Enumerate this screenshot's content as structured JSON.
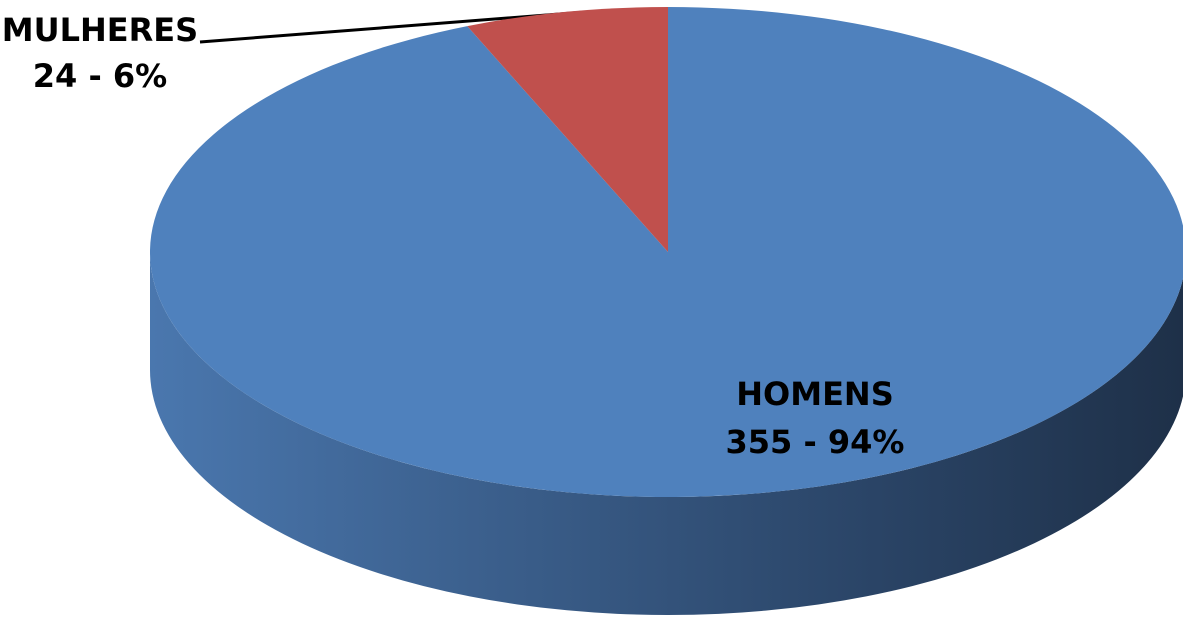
{
  "chart_data": {
    "type": "pie3d",
    "categories": [
      "HOMENS",
      "MULHERES"
    ],
    "values": [
      355,
      24
    ],
    "value_labels": [
      "355 - 94%",
      "24 - 6%"
    ],
    "colors": [
      "#4f81bd",
      "#c0504d"
    ]
  }
}
